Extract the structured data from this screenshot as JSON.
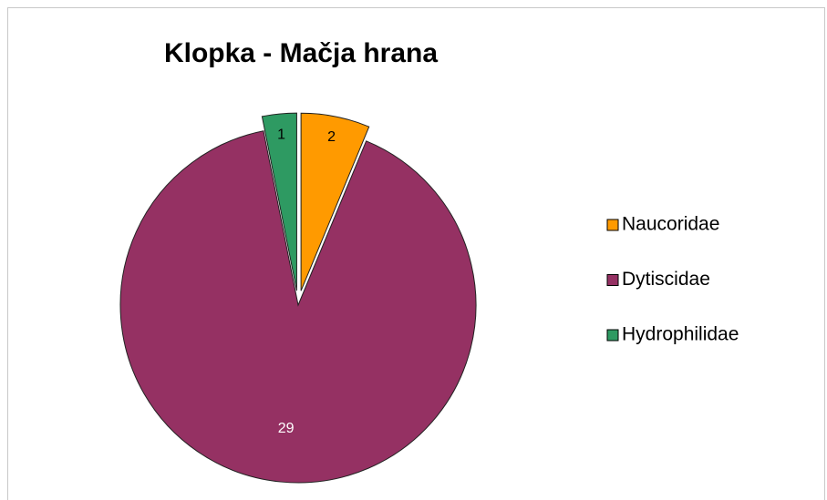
{
  "chart_data": {
    "type": "pie",
    "title": "Klopka - Mačja hrana",
    "categories": [
      "Naucoridae",
      "Dytiscidae",
      "Hydrophilidae"
    ],
    "values": [
      2,
      29,
      1
    ],
    "colors": [
      "#ff9a00",
      "#953163",
      "#2e9a62"
    ],
    "label_colors": [
      "#000000",
      "#ffffff",
      "#000000"
    ],
    "exploded": [
      true,
      false,
      true
    ],
    "legend": "right"
  }
}
